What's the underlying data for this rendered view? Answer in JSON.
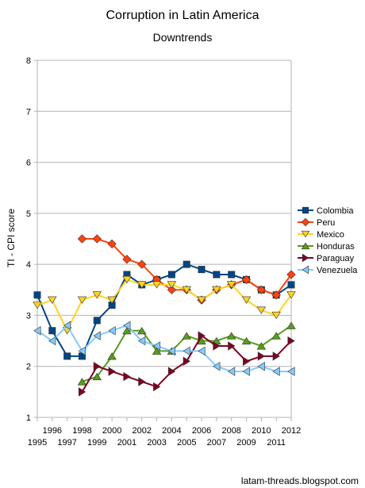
{
  "chart_data": {
    "type": "line",
    "title": "Corruption in Latin America",
    "subtitle": "Downtrends",
    "xlabel": "",
    "ylabel": "TI - CPI score",
    "xlim": [
      1995,
      2012
    ],
    "ylim": [
      1,
      8
    ],
    "yticks": [
      1,
      2,
      3,
      4,
      5,
      6,
      7,
      8
    ],
    "x_tick_labels_upper": [
      "1996",
      "1998",
      "2000",
      "2002",
      "2004",
      "2006",
      "2008",
      "2010",
      "2012"
    ],
    "x_tick_labels_lower": [
      "1995",
      "1997",
      "1999",
      "2001",
      "2003",
      "2005",
      "2007",
      "2009",
      "2011"
    ],
    "grid": "horizontal",
    "legend_position": "right",
    "series": [
      {
        "name": "Colombia",
        "color": "#004586",
        "marker": "square",
        "x": [
          1995,
          1996,
          1997,
          1998,
          1999,
          2000,
          2001,
          2002,
          2003,
          2004,
          2005,
          2006,
          2007,
          2008,
          2009,
          2010,
          2011,
          2012
        ],
        "values": [
          3.4,
          2.7,
          2.2,
          2.2,
          2.9,
          3.2,
          3.8,
          3.6,
          3.7,
          3.8,
          4.0,
          3.9,
          3.8,
          3.8,
          3.7,
          3.5,
          3.4,
          3.6
        ]
      },
      {
        "name": "Peru",
        "color": "#ff420e",
        "marker": "diamond",
        "x": [
          1998,
          1999,
          2000,
          2001,
          2002,
          2003,
          2004,
          2005,
          2006,
          2007,
          2008,
          2009,
          2010,
          2011,
          2012
        ],
        "values": [
          4.5,
          4.5,
          4.4,
          4.1,
          4.0,
          3.7,
          3.5,
          3.5,
          3.3,
          3.5,
          3.6,
          3.7,
          3.5,
          3.4,
          3.8
        ]
      },
      {
        "name": "Mexico",
        "color": "#ffd320",
        "marker": "triangle-down",
        "x": [
          1995,
          1996,
          1997,
          1998,
          1999,
          2000,
          2001,
          2002,
          2003,
          2004,
          2005,
          2006,
          2007,
          2008,
          2009,
          2010,
          2011,
          2012
        ],
        "values": [
          3.2,
          3.3,
          2.7,
          3.3,
          3.4,
          3.3,
          3.7,
          3.6,
          3.6,
          3.6,
          3.5,
          3.3,
          3.5,
          3.6,
          3.3,
          3.1,
          3.0,
          3.4
        ]
      },
      {
        "name": "Honduras",
        "color": "#579d1c",
        "marker": "triangle-up",
        "x": [
          1998,
          1999,
          2000,
          2001,
          2002,
          2003,
          2004,
          2005,
          2006,
          2007,
          2008,
          2009,
          2010,
          2011,
          2012
        ],
        "values": [
          1.7,
          1.8,
          2.2,
          2.7,
          2.7,
          2.3,
          2.3,
          2.6,
          2.5,
          2.5,
          2.6,
          2.5,
          2.4,
          2.6,
          2.8
        ]
      },
      {
        "name": "Paraguay",
        "color": "#7e0021",
        "marker": "triangle-right",
        "x": [
          1998,
          1999,
          2000,
          2001,
          2002,
          2003,
          2004,
          2005,
          2006,
          2007,
          2008,
          2009,
          2010,
          2011,
          2012
        ],
        "values": [
          1.5,
          2.0,
          1.9,
          1.8,
          1.7,
          1.6,
          1.9,
          2.1,
          2.6,
          2.4,
          2.4,
          2.1,
          2.2,
          2.2,
          2.5
        ]
      },
      {
        "name": "Venezuela",
        "color": "#83caff",
        "marker": "triangle-left",
        "x": [
          1995,
          1996,
          1997,
          1998,
          1999,
          2000,
          2001,
          2002,
          2003,
          2004,
          2005,
          2006,
          2007,
          2008,
          2009,
          2010,
          2011,
          2012
        ],
        "values": [
          2.7,
          2.5,
          2.8,
          2.3,
          2.6,
          2.7,
          2.8,
          2.5,
          2.4,
          2.3,
          2.3,
          2.3,
          2.0,
          1.9,
          1.9,
          2.0,
          1.9,
          1.9
        ]
      }
    ]
  },
  "source": "latam-threads.blogspot.com"
}
